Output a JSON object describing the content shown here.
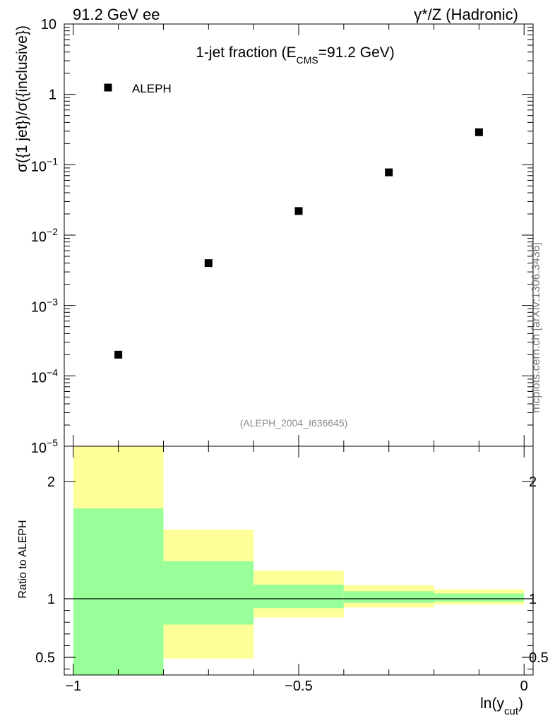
{
  "header": {
    "left": "91.2 GeV ee",
    "right": "γ*/Z (Hadronic)"
  },
  "watermark": "mcplots.cern.ch [arXiv:1306.3436]",
  "chart_data": [
    {
      "type": "scatter",
      "title": {
        "prefix": "1-jet fraction (E",
        "sub": "CMS",
        "suffix": "=91.2 GeV)"
      },
      "ylabel": "σ({1 jet})/σ({inclusive})",
      "yscale": "log",
      "ylim": [
        1e-05,
        10
      ],
      "xlim": [
        -1.02,
        0.02
      ],
      "y_tick_labels": [
        {
          "value": 10,
          "text": "10"
        },
        {
          "value": 1,
          "text": "1"
        },
        {
          "value": 0.1,
          "base": "10",
          "exp": "−1"
        },
        {
          "value": 0.01,
          "base": "10",
          "exp": "−2"
        },
        {
          "value": 0.001,
          "base": "10",
          "exp": "−3"
        },
        {
          "value": 0.0001,
          "base": "10",
          "exp": "−4"
        },
        {
          "value": 1e-05,
          "base": "10",
          "exp": "−5"
        }
      ],
      "legend": {
        "position": "top-left",
        "label": "ALEPH",
        "marker_color": "#000000"
      },
      "analysis_label": "(ALEPH_2004_I636645)",
      "series": [
        {
          "name": "ALEPH",
          "x": [
            -0.9,
            -0.7,
            -0.5,
            -0.3,
            -0.1
          ],
          "y": [
            0.0002,
            0.004,
            0.022,
            0.078,
            0.29
          ]
        }
      ]
    },
    {
      "type": "area",
      "ylabel": "Ratio to ALEPH",
      "xlabel": {
        "main": "ln(y",
        "sub": "cut",
        "suffix": ")"
      },
      "ylim": [
        0.35,
        2.3
      ],
      "xlim": [
        -1.02,
        0.02
      ],
      "y_ticks": [
        0.5,
        1,
        2
      ],
      "y_tick_labels": [
        "0.5",
        "1",
        "2"
      ],
      "x_ticks": [
        -1,
        -0.5,
        0
      ],
      "x_tick_labels": [
        "−1",
        "−0.5",
        "0"
      ],
      "reference_line": 1,
      "bins": [
        {
          "x": [
            -1.0,
            -0.8
          ],
          "stat": [
            0.35,
            1.77
          ],
          "total": [
            0.35,
            2.3
          ]
        },
        {
          "x": [
            -0.8,
            -0.6
          ],
          "stat": [
            0.78,
            1.32
          ],
          "total": [
            0.49,
            1.59
          ]
        },
        {
          "x": [
            -0.6,
            -0.4
          ],
          "stat": [
            0.92,
            1.12
          ],
          "total": [
            0.84,
            1.24
          ]
        },
        {
          "x": [
            -0.4,
            -0.2
          ],
          "stat": [
            0.965,
            1.065
          ],
          "total": [
            0.925,
            1.115
          ]
        },
        {
          "x": [
            -0.2,
            0.0
          ],
          "stat": [
            0.975,
            1.045
          ],
          "total": [
            0.95,
            1.08
          ]
        }
      ],
      "colors": {
        "stat": "#99ff99",
        "total": "#ffff99"
      }
    }
  ]
}
